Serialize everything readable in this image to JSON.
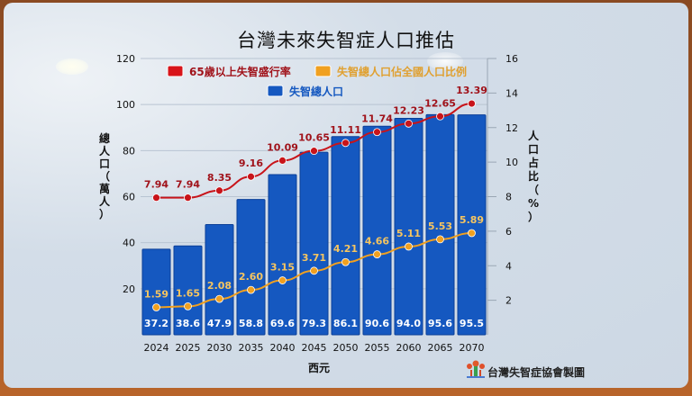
{
  "chart_data": {
    "type": "bar+line",
    "title": "台灣未來失智症人口推估",
    "xlabel": "西元",
    "ylabel_left": "總人口（萬人）",
    "ylabel_right": "人口占比（%）",
    "ylim_left": [
      0,
      120
    ],
    "yticks_left": [
      20,
      40,
      60,
      80,
      100,
      120
    ],
    "ylim_right": [
      0,
      16
    ],
    "yticks_right": [
      2,
      4,
      6,
      8,
      10,
      12,
      14,
      16
    ],
    "categories": [
      "2024",
      "2025",
      "2030",
      "2035",
      "2040",
      "2045",
      "2050",
      "2055",
      "2060",
      "2065",
      "2070"
    ],
    "series": [
      {
        "name": "失智總人口",
        "kind": "bar",
        "axis": "left",
        "color": "#1558c0",
        "values": [
          37.2,
          38.6,
          47.9,
          58.8,
          69.6,
          79.3,
          86.1,
          90.6,
          94.0,
          95.6,
          95.5
        ],
        "labels": [
          "37.2",
          "38.6",
          "47.9",
          "58.8",
          "69.6",
          "79.3",
          "86.1",
          "90.6",
          "94.0",
          "95.6",
          "95.5"
        ]
      },
      {
        "name": "65歲以上失智盛行率",
        "kind": "line",
        "axis": "right",
        "color": "#c8141a",
        "label_color": "#a0121a",
        "values": [
          7.94,
          7.94,
          8.35,
          9.16,
          10.09,
          10.65,
          11.11,
          11.74,
          12.23,
          12.65,
          13.39
        ],
        "labels": [
          "7.94",
          "7.94",
          "8.35",
          "9.16",
          "10.09",
          "10.65",
          "11.11",
          "11.74",
          "12.23",
          "12.65",
          "13.39"
        ]
      },
      {
        "name": "失智總人口佔全國人口比例",
        "kind": "line",
        "axis": "right",
        "color": "#f0a020",
        "label_color": "#f6c560",
        "values": [
          1.59,
          1.65,
          2.08,
          2.6,
          3.15,
          3.71,
          4.21,
          4.66,
          5.11,
          5.53,
          5.89
        ],
        "labels": [
          "1.59",
          "1.65",
          "2.08",
          "2.60",
          "3.15",
          "3.71",
          "4.21",
          "4.66",
          "5.11",
          "5.53",
          "5.89"
        ]
      }
    ],
    "legend": {
      "placement": "top",
      "entries": [
        "65歲以上失智盛行率",
        "失智總人口佔全國人口比例",
        "失智總人口"
      ]
    },
    "grid": true
  },
  "footer": {
    "credit": "台灣失智症協會製圖",
    "logo_icon": "association-logo-icon"
  }
}
